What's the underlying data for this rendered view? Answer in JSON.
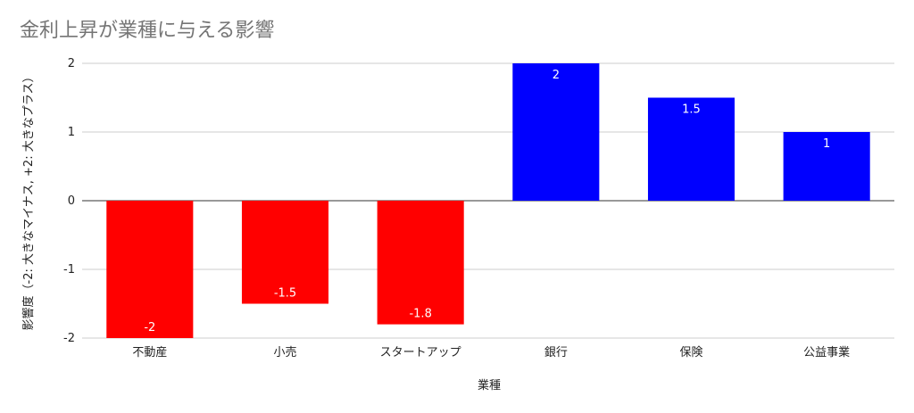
{
  "chart_data": {
    "type": "bar",
    "title": "金利上昇が業種に与える影響",
    "xlabel": "業種",
    "ylabel": "影響度（-2: 大きなマイナス, +2: 大きなプラス）",
    "categories": [
      "不動産",
      "小売",
      "スタートアップ",
      "銀行",
      "保険",
      "公益事業"
    ],
    "values": [
      -2,
      -1.5,
      -1.8,
      2,
      1.5,
      1
    ],
    "data_labels": [
      "-2",
      "-1.5",
      "-1.8",
      "2",
      "1.5",
      "1"
    ],
    "ylim": [
      -2,
      2
    ],
    "yticks": [
      2,
      1,
      0,
      -1,
      -2
    ],
    "ytick_labels": [
      "2",
      "1",
      "0",
      "-1",
      "-2"
    ],
    "grid": true,
    "legend": "none",
    "colors": {
      "negative": "#ff0000",
      "positive": "#0000ff",
      "label": "#ffffff",
      "gridline": "#cccccc",
      "zero_line": "#333333",
      "title": "#757575"
    }
  }
}
